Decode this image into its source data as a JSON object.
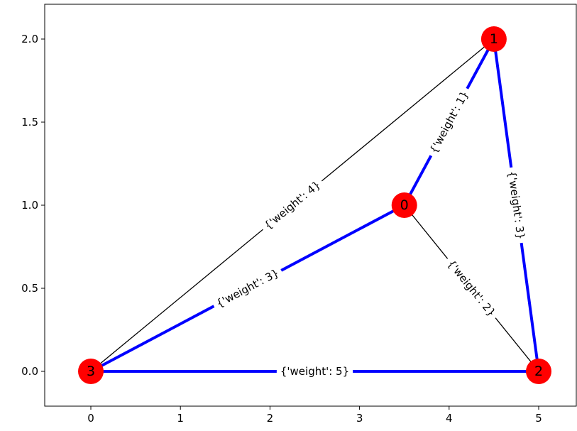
{
  "chart_data": {
    "type": "graph",
    "x_ticks": [
      "0",
      "1",
      "2",
      "3",
      "4",
      "5"
    ],
    "y_ticks": [
      "0.0",
      "0.5",
      "1.0",
      "1.5",
      "2.0"
    ],
    "xlim": [
      -0.52,
      5.4
    ],
    "ylim": [
      -0.21,
      2.11
    ],
    "grid": false,
    "nodes": [
      {
        "id": "0",
        "x": 3.5,
        "y": 1.0
      },
      {
        "id": "1",
        "x": 4.5,
        "y": 2.0
      },
      {
        "id": "2",
        "x": 5.0,
        "y": 0.0
      },
      {
        "id": "3",
        "x": 0.0,
        "y": 0.0
      }
    ],
    "edges": [
      {
        "source": "0",
        "target": "1",
        "label": "{'weight': 1}",
        "highlighted": true
      },
      {
        "source": "0",
        "target": "2",
        "label": "{'weight': 2}",
        "highlighted": false
      },
      {
        "source": "0",
        "target": "3",
        "label": "{'weight': 3}",
        "highlighted": true
      },
      {
        "source": "1",
        "target": "2",
        "label": "{'weight': 3}",
        "highlighted": true
      },
      {
        "source": "1",
        "target": "3",
        "label": "{'weight': 4}",
        "highlighted": false
      },
      {
        "source": "2",
        "target": "3",
        "label": "{'weight': 5}",
        "highlighted": true
      }
    ],
    "colors": {
      "node_fill": "#ff0000",
      "highlight_edge": "#0000ff",
      "plain_edge": "#000000",
      "axis": "#000000",
      "text": "#000000"
    }
  }
}
